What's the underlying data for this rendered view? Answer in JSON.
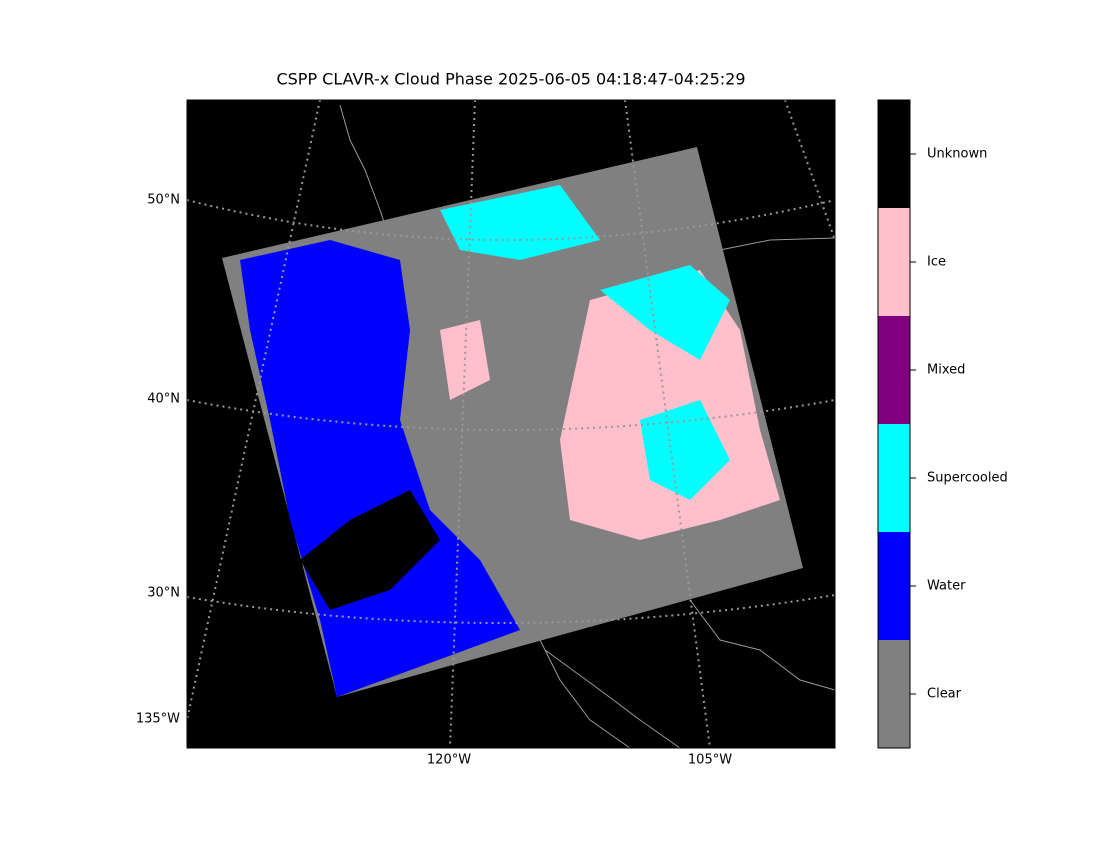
{
  "title": "CSPP CLAVR-x Cloud Phase 2025-06-05 04:18:47-04:25:29",
  "map": {
    "lat_labels": [
      "50°N",
      "40°N",
      "30°N"
    ],
    "lon_labels": [
      "135°W",
      "120°W",
      "105°W"
    ]
  },
  "legend": {
    "items": [
      {
        "label": "Unknown",
        "color": "#000000"
      },
      {
        "label": "Ice",
        "color": "#ffc0cb"
      },
      {
        "label": "Mixed",
        "color": "#800080"
      },
      {
        "label": "Supercooled",
        "color": "#00ffff"
      },
      {
        "label": "Water",
        "color": "#0000ff"
      },
      {
        "label": "Clear",
        "color": "#808080"
      }
    ]
  }
}
